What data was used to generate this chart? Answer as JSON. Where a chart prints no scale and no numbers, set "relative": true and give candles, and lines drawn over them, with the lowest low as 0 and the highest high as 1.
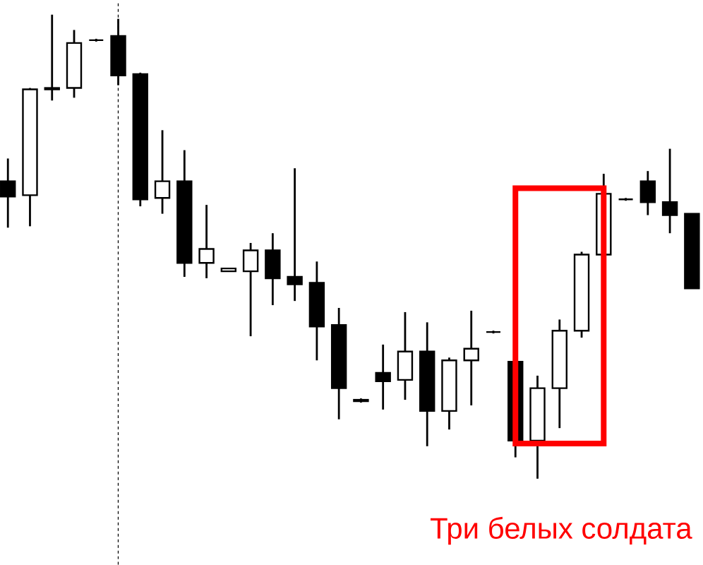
{
  "chart_data": {
    "type": "candlestick",
    "relative": true,
    "categories": [
      null,
      null,
      null,
      null,
      null,
      null,
      null,
      null,
      null,
      null,
      null,
      null,
      null,
      null,
      null,
      null,
      null,
      null,
      null,
      null,
      null,
      null,
      null,
      null,
      null,
      null,
      null,
      null,
      null,
      null,
      null,
      null
    ],
    "ohlc": [
      [
        0.641,
        0.69,
        0.541,
        0.608
      ],
      [
        0.611,
        0.842,
        0.544,
        0.839
      ],
      [
        0.842,
        1.0,
        0.815,
        0.839
      ],
      [
        0.842,
        0.967,
        0.821,
        0.939
      ],
      [
        0.945,
        0.948,
        0.942,
        0.945
      ],
      [
        0.954,
        0.991,
        0.848,
        0.869
      ],
      [
        0.872,
        0.875,
        0.587,
        0.602
      ],
      [
        0.605,
        0.751,
        0.571,
        0.641
      ],
      [
        0.641,
        0.708,
        0.435,
        0.465
      ],
      [
        0.465,
        0.59,
        0.432,
        0.495
      ],
      [
        0.447,
        0.453,
        0.447,
        0.453
      ],
      [
        0.447,
        0.508,
        0.307,
        0.492
      ],
      [
        0.492,
        0.529,
        0.374,
        0.432
      ],
      [
        0.435,
        0.669,
        0.383,
        0.419
      ],
      [
        0.422,
        0.468,
        0.255,
        0.328
      ],
      [
        0.331,
        0.368,
        0.128,
        0.195
      ],
      [
        0.17,
        0.173,
        0.164,
        0.167
      ],
      [
        0.228,
        0.289,
        0.149,
        0.21
      ],
      [
        0.213,
        0.359,
        0.17,
        0.274
      ],
      [
        0.274,
        0.337,
        0.07,
        0.146
      ],
      [
        0.146,
        0.261,
        0.106,
        0.255
      ],
      [
        0.255,
        0.362,
        0.158,
        0.28
      ],
      [
        0.316,
        0.319,
        0.313,
        0.316
      ],
      [
        0.252,
        0.252,
        0.046,
        0.082
      ],
      [
        0.082,
        0.222,
        0.0,
        0.195
      ],
      [
        0.195,
        0.343,
        0.109,
        0.319
      ],
      [
        0.319,
        0.489,
        0.304,
        0.483
      ],
      [
        0.483,
        0.657,
        0.483,
        0.614
      ],
      [
        0.602,
        0.605,
        0.599,
        0.602
      ],
      [
        0.641,
        0.663,
        0.568,
        0.596
      ],
      [
        0.596,
        0.711,
        0.529,
        0.568
      ],
      [
        0.571,
        0.571,
        0.41,
        0.41
      ]
    ],
    "annotations": [
      "Три белых солдата"
    ]
  }
}
